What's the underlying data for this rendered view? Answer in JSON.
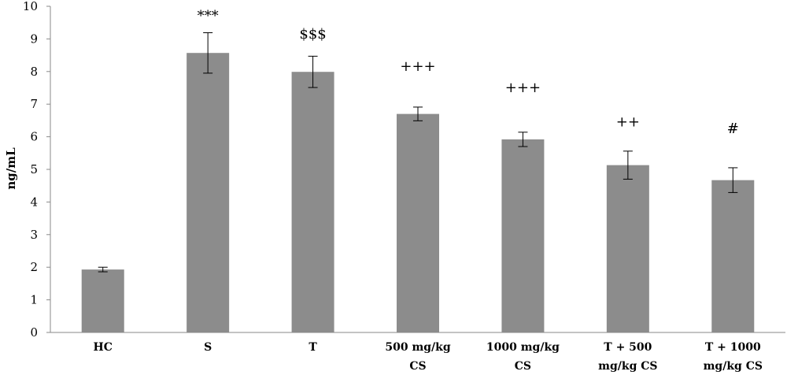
{
  "chart_data": {
    "type": "bar",
    "ylabel": "ng/mL",
    "xlabel": "",
    "ylim": [
      0,
      10
    ],
    "yticks": [
      "0",
      "1",
      "2",
      "3",
      "4",
      "5",
      "6",
      "7",
      "8",
      "9",
      "10"
    ],
    "bar_color": "#8c8c8c",
    "categories": [
      [
        "HC"
      ],
      [
        "S"
      ],
      [
        "T"
      ],
      [
        "500 mg/kg",
        "CS"
      ],
      [
        "1000 mg/kg",
        "CS"
      ],
      [
        "T + 500",
        "mg/kg CS"
      ],
      [
        "T + 1000",
        "mg/kg CS"
      ]
    ],
    "values": [
      1.93,
      8.57,
      7.99,
      6.7,
      5.92,
      5.13,
      4.67
    ],
    "errors": [
      0.07,
      0.62,
      0.48,
      0.21,
      0.22,
      0.43,
      0.38
    ],
    "annotations": [
      "",
      "***",
      "$$$",
      "+++",
      "+++",
      "++",
      "#"
    ],
    "annotation_y": [
      0,
      9.95,
      9.4,
      8.4,
      7.75,
      6.7,
      6.5
    ]
  }
}
